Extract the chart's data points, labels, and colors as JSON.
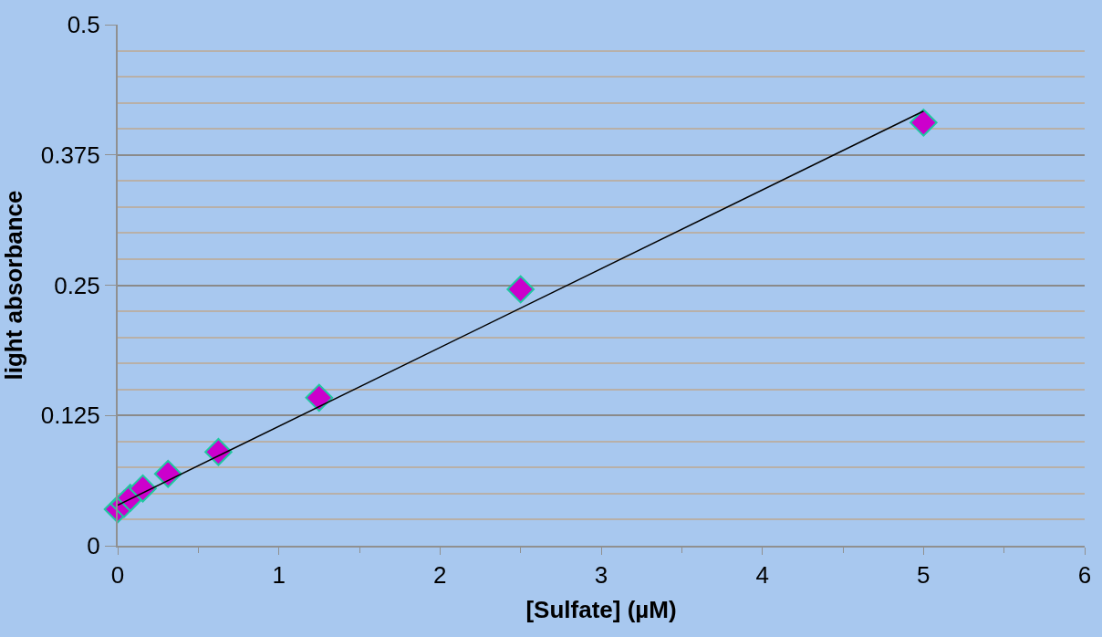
{
  "chart_data": {
    "type": "scatter",
    "xlabel": "[Sulfate] (µM)",
    "ylabel": "light absorbance",
    "x": [
      0,
      0.039,
      0.078,
      0.156,
      0.3125,
      0.625,
      1.25,
      2.5,
      5
    ],
    "series": [
      {
        "marker": "diamond",
        "color": "#cc00cc",
        "values": [
          0.035,
          0.04,
          0.046,
          0.055,
          0.069,
          0.09,
          0.142,
          0.246,
          0.406
        ]
      },
      {
        "type": "line",
        "marker": "none",
        "color": "#000000",
        "x": [
          0,
          5
        ],
        "values": [
          0.039,
          0.417
        ]
      }
    ],
    "grid": "y",
    "xlim": [
      0,
      6
    ],
    "ylim": [
      0,
      0.5
    ],
    "xticks": [
      0,
      {
        "value": 0.5,
        "label": null
      },
      1,
      {
        "value": 1.5,
        "label": null
      },
      2,
      {
        "value": 2.5,
        "label": null
      },
      3,
      {
        "value": 3.5,
        "label": null
      },
      4,
      {
        "value": 4.5,
        "label": null
      },
      5,
      {
        "value": 5.5,
        "label": null
      },
      6
    ],
    "yticks": [
      0,
      {
        "value": 0.025,
        "label": null
      },
      {
        "value": 0.05,
        "label": null
      },
      {
        "value": 0.075,
        "label": null
      },
      {
        "value": 0.1,
        "label": null
      },
      0.125,
      {
        "value": 0.15,
        "label": null
      },
      {
        "value": 0.175,
        "label": null
      },
      {
        "value": 0.2,
        "label": null
      },
      {
        "value": 0.225,
        "label": null
      },
      0.25,
      {
        "value": 0.275,
        "label": null
      },
      {
        "value": 0.3,
        "label": null
      },
      {
        "value": 0.325,
        "label": null
      },
      {
        "value": 0.35,
        "label": null
      },
      0.375,
      {
        "value": 0.4,
        "label": null
      },
      {
        "value": 0.425,
        "label": null
      },
      {
        "value": 0.45,
        "label": null
      },
      {
        "value": 0.475,
        "label": null
      },
      0.5
    ]
  }
}
